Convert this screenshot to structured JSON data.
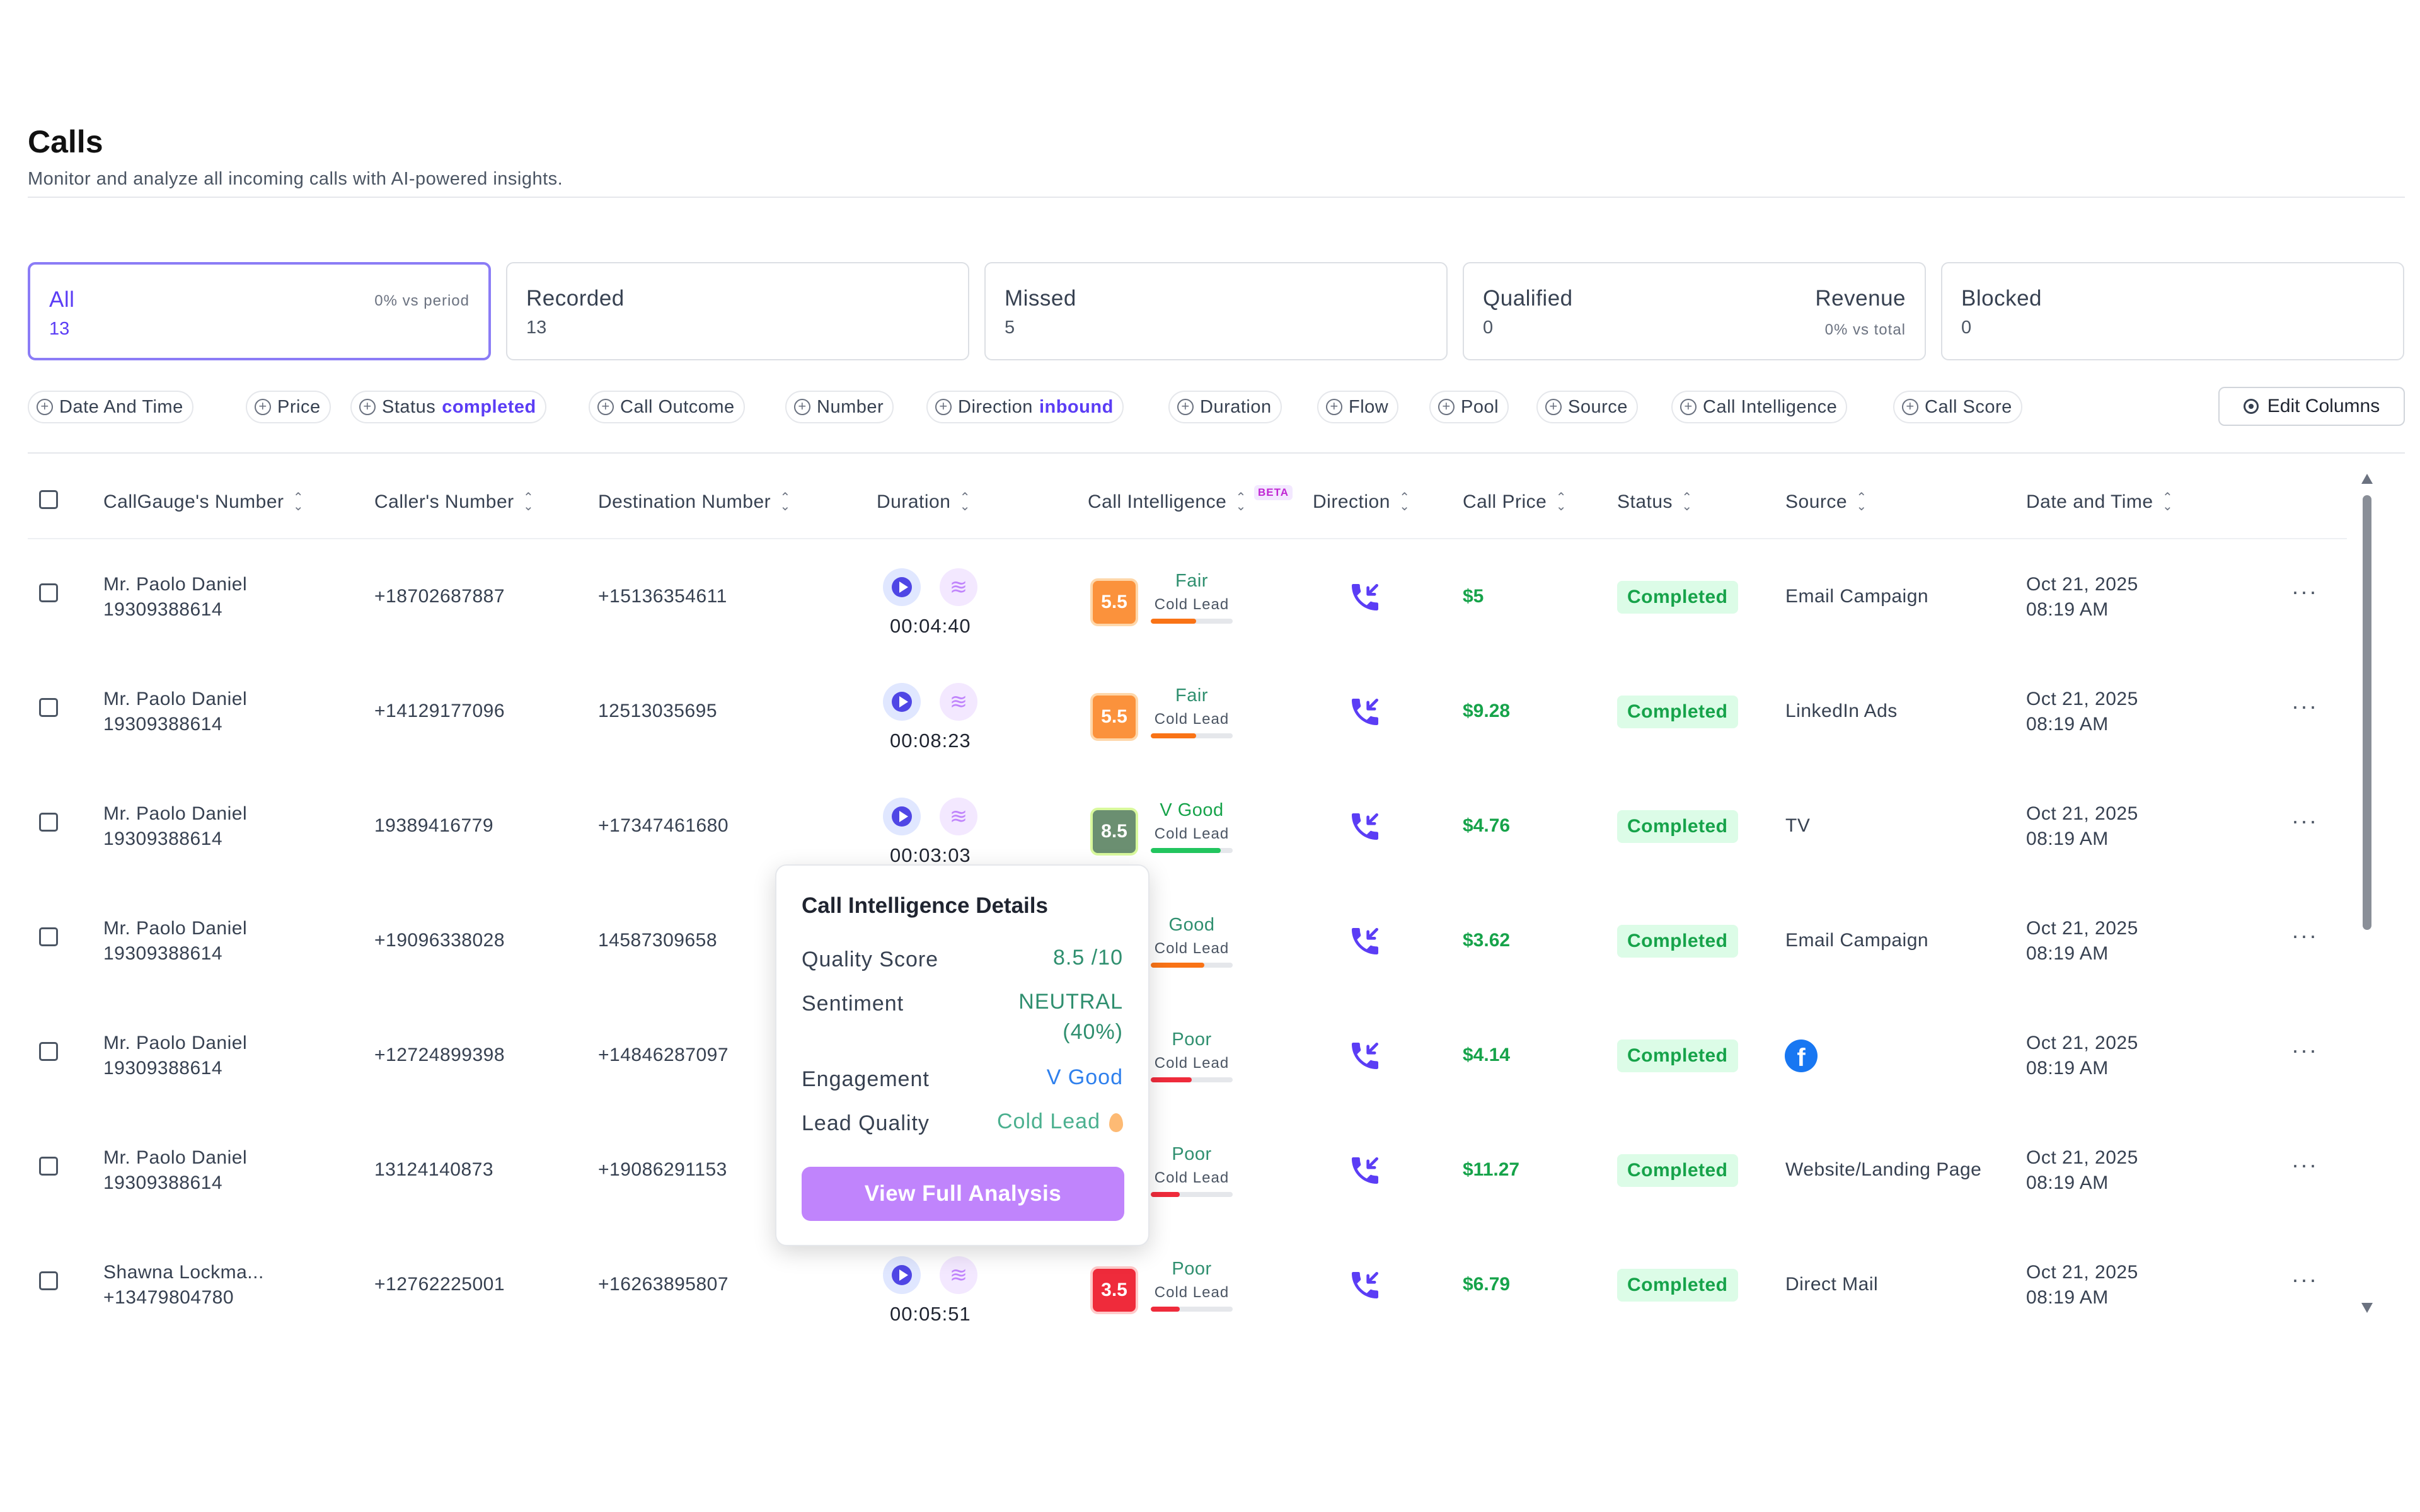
{
  "header": {
    "title": "Calls",
    "subtitle": "Monitor and analyze all incoming calls with AI-powered insights."
  },
  "stat_cards": [
    {
      "label": "All",
      "value": "13",
      "right_note": "0% vs period",
      "active": true
    },
    {
      "label": "Recorded",
      "value": "13"
    },
    {
      "label": "Missed",
      "value": "5"
    },
    {
      "label": "Qualified",
      "value": "0",
      "right_label": "Revenue",
      "right_note": "0% vs total"
    },
    {
      "label": "Blocked",
      "value": "0"
    }
  ],
  "filters": [
    {
      "label": "Date And Time"
    },
    {
      "label": "Price"
    },
    {
      "label": "Status",
      "value": "completed"
    },
    {
      "label": "Call Outcome"
    },
    {
      "label": "Number"
    },
    {
      "label": "Direction",
      "value": "inbound"
    },
    {
      "label": "Duration"
    },
    {
      "label": "Flow"
    },
    {
      "label": "Pool"
    },
    {
      "label": "Source"
    },
    {
      "label": "Call Intelligence"
    },
    {
      "label": "Call Score"
    }
  ],
  "edit_columns_label": "Edit Columns",
  "table": {
    "columns": [
      "CallGauge's Number",
      "Caller's Number",
      "Destination Number",
      "Duration",
      "Call Intelligence",
      "Direction",
      "Call Price",
      "Status",
      "Source",
      "Date and Time"
    ],
    "beta_badge": "BETA",
    "rows": [
      {
        "name": "Mr. Paolo Daniel",
        "callgauge_number": "19309388614",
        "caller": "+18702687887",
        "destination": "+15136354611",
        "duration": "00:04:40",
        "score": "5.5",
        "score_label": "Fair",
        "lead": "Cold Lead",
        "score_fraction": 0.55,
        "price": "$5",
        "status": "Completed",
        "source": "Email Campaign",
        "date": "Oct 21, 2025",
        "time": "08:19 AM"
      },
      {
        "name": "Mr. Paolo Daniel",
        "callgauge_number": "19309388614",
        "caller": "+14129177096",
        "destination": "12513035695",
        "duration": "00:08:23",
        "score": "5.5",
        "score_label": "Fair",
        "lead": "Cold Lead",
        "score_fraction": 0.55,
        "price": "$9.28",
        "status": "Completed",
        "source": "LinkedIn Ads",
        "date": "Oct 21, 2025",
        "time": "08:19 AM"
      },
      {
        "name": "Mr. Paolo Daniel",
        "callgauge_number": "19309388614",
        "caller": "19389416779",
        "destination": "+17347461680",
        "duration": "00:03:03",
        "score": "8.5",
        "score_label": "V Good",
        "lead": "Cold Lead",
        "score_fraction": 0.85,
        "price": "$4.76",
        "status": "Completed",
        "source": "TV",
        "date": "Oct 21, 2025",
        "time": "08:19 AM"
      },
      {
        "name": "Mr. Paolo Daniel",
        "callgauge_number": "19309388614",
        "caller": "+19096338028",
        "destination": "14587309658",
        "duration": "",
        "score": "",
        "score_label": "Good",
        "lead": "Cold Lead",
        "score_fraction": 0.65,
        "price": "$3.62",
        "status": "Completed",
        "source": "Email Campaign",
        "date": "Oct 21, 2025",
        "time": "08:19 AM"
      },
      {
        "name": "Mr. Paolo Daniel",
        "callgauge_number": "19309388614",
        "caller": "+12724899398",
        "destination": "+14846287097",
        "duration": "",
        "score": "",
        "score_label": "Poor",
        "lead": "Cold Lead",
        "score_fraction": 0.5,
        "price": "$4.14",
        "status": "Completed",
        "source": "",
        "source_icon": "facebook-icon",
        "date": "Oct 21, 2025",
        "time": "08:19 AM"
      },
      {
        "name": "Mr. Paolo Daniel",
        "callgauge_number": "19309388614",
        "caller": "13124140873",
        "destination": "+19086291153",
        "duration": "",
        "score": "",
        "score_label": "Poor",
        "lead": "Cold Lead",
        "score_fraction": 0.35,
        "price": "$11.27",
        "status": "Completed",
        "source": "Website/Landing Page",
        "date": "Oct 21, 2025",
        "time": "08:19 AM"
      },
      {
        "name": "Shawna Lockma...",
        "callgauge_number": "+13479804780",
        "caller": "+12762225001",
        "destination": "+16263895807",
        "duration": "00:05:51",
        "score": "3.5",
        "score_label": "Poor",
        "lead": "Cold Lead",
        "score_fraction": 0.35,
        "price": "$6.79",
        "status": "Completed",
        "source": "Direct Mail",
        "date": "Oct 21, 2025",
        "time": "08:19 AM"
      }
    ]
  },
  "popup": {
    "title": "Call Intelligence Details",
    "quality_score_label": "Quality Score",
    "quality_score_value": "8.5 /10",
    "sentiment_label": "Sentiment",
    "sentiment_value": "NEUTRAL",
    "sentiment_pct": "(40%)",
    "engagement_label": "Engagement",
    "engagement_value": "V Good",
    "lead_quality_label": "Lead Quality",
    "lead_quality_value": "Cold Lead",
    "button_label": "View Full Analysis"
  },
  "colors": {
    "accent": "#5b3df5",
    "score_fair": "#fb923c",
    "score_vgood": "#6b8f71",
    "score_poor": "#ef2b3b",
    "bar_orange": "#f97316",
    "bar_green": "#22c55e",
    "bar_red": "#ef2b3b",
    "success": "#16a34a",
    "popup_button": "#c084fc"
  }
}
